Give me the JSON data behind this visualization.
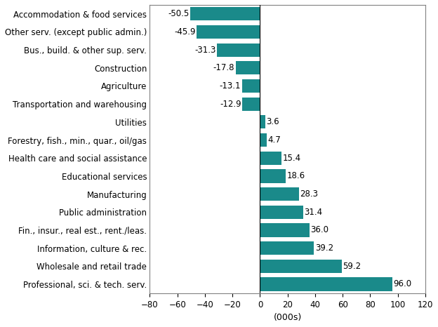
{
  "categories": [
    "Accommodation & food services",
    "Other serv. (except public admin.)",
    "Bus., build. & other sup. serv.",
    "Construction",
    "Agriculture",
    "Transportation and warehousing",
    "Utilities",
    "Forestry, fish., min., quar., oil/gas",
    "Health care and social assistance",
    "Educational services",
    "Manufacturing",
    "Public administration",
    "Fin., insur., real est., rent./leas.",
    "Information, culture & rec.",
    "Wholesale and retail trade",
    "Professional, sci. & tech. serv."
  ],
  "values": [
    -50.5,
    -45.9,
    -31.3,
    -17.8,
    -13.1,
    -12.9,
    3.6,
    4.7,
    15.4,
    18.6,
    28.3,
    31.4,
    36.0,
    39.2,
    59.2,
    96.0
  ],
  "bar_color": "#1a8a8a",
  "xlabel": "(000s)",
  "xlim": [
    -80,
    120
  ],
  "xticks": [
    -80,
    -60,
    -40,
    -20,
    0,
    20,
    40,
    60,
    80,
    100,
    120
  ],
  "figsize": [
    6.24,
    4.66
  ],
  "dpi": 100,
  "label_fontsize": 8.5,
  "xlabel_fontsize": 9,
  "tick_fontsize": 8.5,
  "value_fontsize": 8.5,
  "bar_height": 0.75
}
